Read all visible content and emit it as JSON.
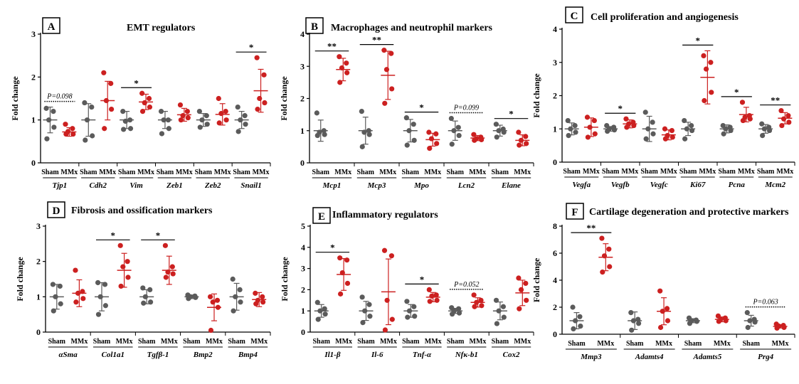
{
  "figure": {
    "colors": {
      "sham": "#5b5b5b",
      "mmx": "#cc2020",
      "axis": "#000000"
    },
    "group_labels": [
      "Sham",
      "MMx"
    ],
    "ylabel": "Fold change"
  },
  "chart_data": [
    {
      "type": "scatter",
      "panel": "A",
      "title": "EMT regulators",
      "ylabel": "Fold change",
      "ylim": [
        0,
        3
      ],
      "yticks": [
        0,
        1,
        2,
        3
      ],
      "genes": [
        {
          "name": "Tjp1",
          "sham": {
            "points": [
              1.27,
              1.2,
              1.0,
              0.83,
              0.56
            ],
            "mean": 1.0,
            "sd": 0.3
          },
          "mmx": {
            "points": [
              0.9,
              0.8,
              0.73,
              0.67,
              0.67
            ],
            "mean": 0.72,
            "sd": 0.1
          },
          "note": "P=0.098",
          "note_style": "dotted"
        },
        {
          "name": "Cdh2",
          "sham": {
            "points": [
              1.4,
              1.3,
              1.0,
              0.63,
              0.53
            ],
            "mean": 1.0,
            "sd": 0.38
          },
          "mmx": {
            "points": [
              2.1,
              1.85,
              1.45,
              1.25,
              0.8
            ],
            "mean": 1.45,
            "sd": 0.45
          }
        },
        {
          "name": "Vim",
          "sham": {
            "points": [
              1.2,
              1.0,
              0.97,
              0.8,
              0.78
            ],
            "mean": 1.0,
            "sd": 0.2
          },
          "mmx": {
            "points": [
              1.62,
              1.5,
              1.4,
              1.3,
              1.2
            ],
            "mean": 1.42,
            "sd": 0.18
          },
          "note": "*",
          "note_style": "solid"
        },
        {
          "name": "Zeb1",
          "sham": {
            "points": [
              1.2,
              1.0,
              1.0,
              0.8,
              0.68
            ],
            "mean": 1.0,
            "sd": 0.2
          },
          "mmx": {
            "points": [
              1.35,
              1.2,
              1.1,
              1.05,
              1.0
            ],
            "mean": 1.12,
            "sd": 0.15
          }
        },
        {
          "name": "Zeb2",
          "sham": {
            "points": [
              1.2,
              1.1,
              1.0,
              0.9,
              0.83
            ],
            "mean": 1.0,
            "sd": 0.15
          },
          "mmx": {
            "points": [
              1.5,
              1.2,
              1.15,
              1.0,
              0.93
            ],
            "mean": 1.13,
            "sd": 0.25
          }
        },
        {
          "name": "Snail1",
          "sham": {
            "points": [
              1.3,
              1.1,
              1.0,
              0.9,
              0.73
            ],
            "mean": 1.0,
            "sd": 0.2
          },
          "mmx": {
            "points": [
              2.45,
              2.05,
              1.5,
              1.4,
              1.25
            ],
            "mean": 1.68,
            "sd": 0.5
          },
          "note": "*",
          "note_style": "solid"
        }
      ]
    },
    {
      "type": "scatter",
      "panel": "B",
      "title": "Macrophages and neutrophil markers",
      "ylabel": "Fold change",
      "ylim": [
        0,
        4
      ],
      "yticks": [
        0,
        1,
        2,
        3,
        4
      ],
      "genes": [
        {
          "name": "Mcp1",
          "sham": {
            "points": [
              1.55,
              1.0,
              0.95,
              0.88,
              0.85
            ],
            "mean": 1.0,
            "sd": 0.33
          },
          "mmx": {
            "points": [
              3.3,
              3.1,
              2.95,
              2.8,
              2.5
            ],
            "mean": 2.9,
            "sd": 0.35
          },
          "note": "**",
          "note_style": "solid"
        },
        {
          "name": "Mcp3",
          "sham": {
            "points": [
              1.6,
              1.0,
              0.95,
              0.88,
              0.5
            ],
            "mean": 1.0,
            "sd": 0.42
          },
          "mmx": {
            "points": [
              3.5,
              3.4,
              2.9,
              2.3,
              1.85
            ],
            "mean": 2.72,
            "sd": 0.75
          },
          "note": "**",
          "note_style": "solid"
        },
        {
          "name": "Mpo",
          "sham": {
            "points": [
              1.4,
              1.2,
              1.0,
              0.7,
              0.55
            ],
            "mean": 1.0,
            "sd": 0.35
          },
          "mmx": {
            "points": [
              0.95,
              0.9,
              0.75,
              0.6,
              0.45
            ],
            "mean": 0.72,
            "sd": 0.2
          },
          "note": "*",
          "note_style": "solid"
        },
        {
          "name": "Lcn2",
          "sham": {
            "points": [
              1.38,
              1.1,
              1.0,
              0.85,
              0.58
            ],
            "mean": 1.0,
            "sd": 0.3
          },
          "mmx": {
            "points": [
              0.88,
              0.8,
              0.75,
              0.72,
              0.7
            ],
            "mean": 0.77,
            "sd": 0.08
          },
          "note": "P=0.099",
          "note_style": "dotted"
        },
        {
          "name": "Elane",
          "sham": {
            "points": [
              1.2,
              1.05,
              1.0,
              0.95,
              0.8
            ],
            "mean": 1.0,
            "sd": 0.17
          },
          "mmx": {
            "points": [
              0.95,
              0.82,
              0.7,
              0.6,
              0.55
            ],
            "mean": 0.7,
            "sd": 0.17
          },
          "note": "*",
          "note_style": "solid"
        }
      ]
    },
    {
      "type": "scatter",
      "panel": "C",
      "title": "Cell proliferation and angiogenesis",
      "ylabel": "Fold change",
      "ylim": [
        0,
        4
      ],
      "yticks": [
        0,
        1,
        2,
        3,
        4
      ],
      "genes": [
        {
          "name": "Vegfa",
          "sham": {
            "points": [
              1.25,
              1.1,
              1.0,
              0.9,
              0.8
            ],
            "mean": 1.0,
            "sd": 0.18
          },
          "mmx": {
            "points": [
              1.35,
              1.25,
              1.05,
              0.85,
              0.75
            ],
            "mean": 1.05,
            "sd": 0.28
          }
        },
        {
          "name": "Vegfb",
          "sham": {
            "points": [
              1.1,
              1.05,
              1.0,
              0.97,
              0.93
            ],
            "mean": 1.0,
            "sd": 0.07
          },
          "mmx": {
            "points": [
              1.3,
              1.2,
              1.15,
              1.1,
              1.05
            ],
            "mean": 1.15,
            "sd": 0.12
          },
          "note": "*",
          "note_style": "solid"
        },
        {
          "name": "Vegfc",
          "sham": {
            "points": [
              1.5,
              1.2,
              1.0,
              0.85,
              0.7
            ],
            "mean": 1.0,
            "sd": 0.38
          },
          "mmx": {
            "points": [
              1.0,
              0.95,
              0.8,
              0.75,
              0.7
            ],
            "mean": 0.82,
            "sd": 0.15
          }
        },
        {
          "name": "Ki67",
          "sham": {
            "points": [
              1.25,
              1.1,
              1.0,
              0.95,
              0.7
            ],
            "mean": 1.0,
            "sd": 0.2
          },
          "mmx": {
            "points": [
              3.2,
              3.0,
              2.8,
              2.1,
              1.85
            ],
            "mean": 2.55,
            "sd": 0.8
          },
          "note": "*",
          "note_style": "solid"
        },
        {
          "name": "Pcna",
          "sham": {
            "points": [
              1.1,
              1.05,
              1.0,
              0.95,
              0.85
            ],
            "mean": 1.0,
            "sd": 0.12
          },
          "mmx": {
            "points": [
              1.8,
              1.4,
              1.35,
              1.3,
              1.25
            ],
            "mean": 1.43,
            "sd": 0.22
          },
          "note": "*",
          "note_style": "solid"
        },
        {
          "name": "Mcm2",
          "sham": {
            "points": [
              1.15,
              1.05,
              1.0,
              0.95,
              0.8
            ],
            "mean": 1.0,
            "sd": 0.13
          },
          "mmx": {
            "points": [
              1.55,
              1.4,
              1.3,
              1.2,
              1.1
            ],
            "mean": 1.32,
            "sd": 0.17
          },
          "note": "**",
          "note_style": "solid"
        }
      ]
    },
    {
      "type": "scatter",
      "panel": "D",
      "title": "Fibrosis and ossification markers",
      "ylabel": "Fold change",
      "ylim": [
        0,
        3
      ],
      "yticks": [
        0,
        1,
        2,
        3
      ],
      "genes": [
        {
          "name": "αSma",
          "sham": {
            "points": [
              1.35,
              1.3,
              1.0,
              0.8,
              0.6
            ],
            "mean": 1.0,
            "sd": 0.35
          },
          "mmx": {
            "points": [
              1.75,
              1.15,
              1.1,
              0.95,
              0.85
            ],
            "mean": 1.1,
            "sd": 0.38
          }
        },
        {
          "name": "Col1a1",
          "sham": {
            "points": [
              1.4,
              1.35,
              1.0,
              0.75,
              0.5
            ],
            "mean": 1.0,
            "sd": 0.4
          },
          "mmx": {
            "points": [
              2.45,
              2.0,
              1.85,
              1.55,
              1.3
            ],
            "mean": 1.75,
            "sd": 0.48
          },
          "note": "*",
          "note_style": "solid"
        },
        {
          "name": "Tgfβ-1",
          "sham": {
            "points": [
              1.25,
              1.2,
              1.0,
              0.85,
              0.82
            ],
            "mean": 1.0,
            "sd": 0.2
          },
          "mmx": {
            "points": [
              2.45,
              1.85,
              1.7,
              1.65,
              1.55
            ],
            "mean": 1.75,
            "sd": 0.4
          },
          "note": "*",
          "note_style": "solid"
        },
        {
          "name": "Bmp2",
          "sham": {
            "points": [
              1.05,
              1.02,
              1.0,
              0.98,
              0.95
            ],
            "mean": 1.0,
            "sd": 0.05
          },
          "mmx": {
            "points": [
              1.0,
              0.9,
              0.85,
              0.7,
              0.05
            ],
            "mean": 0.7,
            "sd": 0.38
          }
        },
        {
          "name": "Bmp4",
          "sham": {
            "points": [
              1.5,
              1.2,
              1.0,
              0.85,
              0.6
            ],
            "mean": 1.0,
            "sd": 0.38
          },
          "mmx": {
            "points": [
              1.1,
              1.0,
              0.9,
              0.85,
              0.8
            ],
            "mean": 0.92,
            "sd": 0.2
          }
        }
      ]
    },
    {
      "type": "scatter",
      "panel": "E",
      "title": "Inflammatory regulators",
      "ylabel": "Fold change",
      "ylim": [
        0,
        5
      ],
      "yticks": [
        0,
        1,
        2,
        3,
        4,
        5
      ],
      "genes": [
        {
          "name": "Il1-β",
          "sham": {
            "points": [
              1.4,
              1.1,
              1.0,
              0.85,
              0.6
            ],
            "mean": 1.0,
            "sd": 0.3
          },
          "mmx": {
            "points": [
              3.5,
              3.4,
              2.8,
              2.3,
              1.8
            ],
            "mean": 2.72,
            "sd": 0.75
          },
          "note": "*",
          "note_style": "solid"
        },
        {
          "name": "Il-6",
          "sham": {
            "points": [
              1.65,
              1.3,
              1.0,
              0.75,
              0.45
            ],
            "mean": 1.0,
            "sd": 0.45
          },
          "mmx": {
            "points": [
              3.85,
              3.6,
              1.5,
              0.6,
              0.1
            ],
            "mean": 1.9,
            "sd": 1.55
          }
        },
        {
          "name": "Tnf-α",
          "sham": {
            "points": [
              1.45,
              1.2,
              1.0,
              0.75,
              0.7
            ],
            "mean": 1.0,
            "sd": 0.3
          },
          "mmx": {
            "points": [
              2.0,
              1.75,
              1.7,
              1.5,
              1.45
            ],
            "mean": 1.65,
            "sd": 0.22
          },
          "note": "*",
          "note_style": "solid"
        },
        {
          "name": "Nfκ-b1",
          "sham": {
            "points": [
              1.15,
              1.1,
              1.0,
              0.9,
              0.85
            ],
            "mean": 1.0,
            "sd": 0.12
          },
          "mmx": {
            "points": [
              1.75,
              1.5,
              1.4,
              1.25,
              1.2
            ],
            "mean": 1.4,
            "sd": 0.22
          },
          "note": "P=0.052",
          "note_style": "dotted"
        },
        {
          "name": "Cox2",
          "sham": {
            "points": [
              1.5,
              1.2,
              1.0,
              0.7,
              0.4
            ],
            "mean": 1.0,
            "sd": 0.42
          },
          "mmx": {
            "points": [
              2.55,
              2.3,
              2.0,
              1.5,
              1.1
            ],
            "mean": 1.85,
            "sd": 0.6
          }
        }
      ]
    },
    {
      "type": "scatter",
      "panel": "F",
      "title": "Cartilage degeneration and protective markers",
      "ylabel": "Fold change",
      "ylim": [
        0,
        8
      ],
      "yticks": [
        0,
        2,
        4,
        6,
        8
      ],
      "genes": [
        {
          "name": "Mmp3",
          "sham": {
            "points": [
              2.0,
              1.3,
              1.0,
              0.6,
              0.4
            ],
            "mean": 1.0,
            "sd": 0.6
          },
          "mmx": {
            "points": [
              7.1,
              6.3,
              5.8,
              5.0,
              4.6
            ],
            "mean": 5.7,
            "sd": 1.0
          },
          "note": "**",
          "note_style": "solid"
        },
        {
          "name": "Adamts4",
          "sham": {
            "points": [
              1.6,
              1.1,
              1.0,
              0.8,
              0.3
            ],
            "mean": 1.0,
            "sd": 0.65
          },
          "mmx": {
            "points": [
              3.2,
              1.9,
              1.7,
              1.0,
              0.5
            ],
            "mean": 1.7,
            "sd": 1.0
          }
        },
        {
          "name": "Adamts5",
          "sham": {
            "points": [
              1.2,
              1.05,
              1.0,
              0.95,
              0.8
            ],
            "mean": 1.0,
            "sd": 0.15
          },
          "mmx": {
            "points": [
              1.35,
              1.2,
              1.1,
              1.0,
              0.95
            ],
            "mean": 1.1,
            "sd": 0.18
          }
        },
        {
          "name": "Prg4",
          "sham": {
            "points": [
              1.6,
              1.1,
              1.0,
              0.9,
              0.5
            ],
            "mean": 1.0,
            "sd": 0.4
          },
          "mmx": {
            "points": [
              0.75,
              0.65,
              0.6,
              0.5,
              0.45
            ],
            "mean": 0.58,
            "sd": 0.12
          },
          "note": "P=0.063",
          "note_style": "dotted"
        }
      ]
    }
  ]
}
